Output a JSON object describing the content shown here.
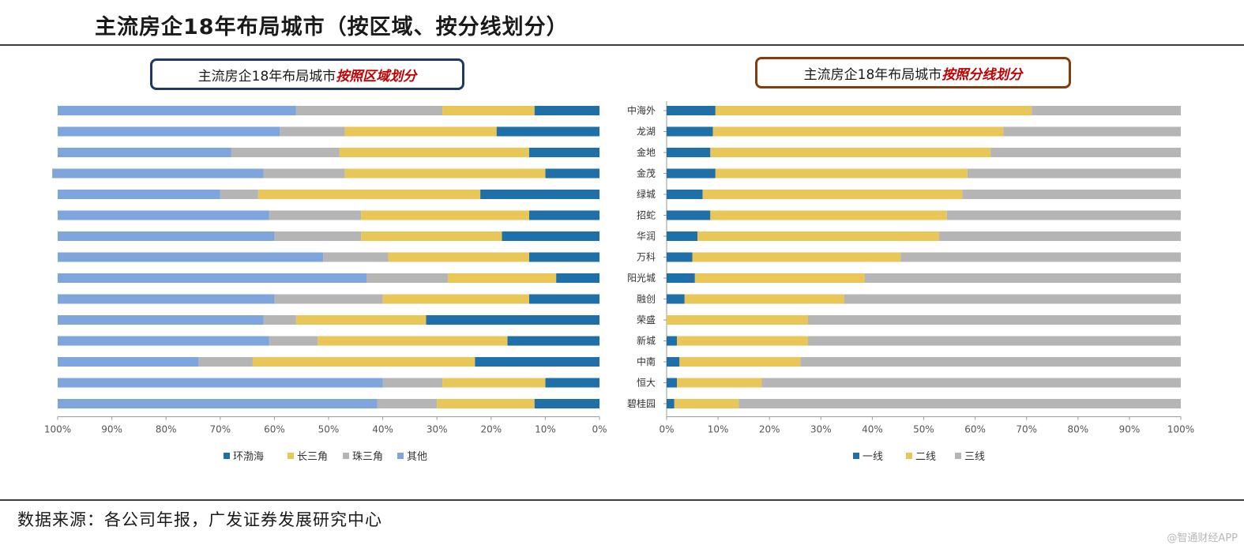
{
  "page": {
    "title": "主流房企18年布局城市（按区域、按分线划分）",
    "left_panel_title_prefix": "主流房企18年布局城市",
    "left_panel_title_highlight": "按照区域划分",
    "right_panel_title_prefix": "主流房企18年布局城市",
    "right_panel_title_highlight": "按照分线划分",
    "source": "数据来源：各公司年报，广发证券发展研究中心",
    "watermark": "@智通财经APP"
  },
  "colors": {
    "dark_blue": "#1f6fa8",
    "yellow": "#e8c657",
    "gray": "#b5b5b5",
    "light_blue": "#7ea6dc"
  },
  "chart_data": [
    {
      "type": "bar",
      "orientation": "horizontal",
      "stacked": true,
      "x_reversed": true,
      "title": "主流房企18年布局城市按照区域划分",
      "xlim": [
        0,
        100
      ],
      "x_ticks": [
        "100%",
        "90%",
        "80%",
        "70%",
        "60%",
        "50%",
        "40%",
        "30%",
        "20%",
        "10%",
        "0%"
      ],
      "legend_position": "bottom",
      "series": [
        {
          "name": "环渤海",
          "color": "#1f6fa8",
          "values": [
            12,
            19,
            13,
            10,
            22,
            13,
            18,
            13,
            8,
            13,
            32,
            17,
            23,
            10,
            12
          ]
        },
        {
          "name": "长三角",
          "color": "#e8c657",
          "values": [
            17,
            28,
            35,
            37,
            41,
            31,
            26,
            26,
            20,
            27,
            24,
            35,
            41,
            19,
            18
          ]
        },
        {
          "name": "珠三角",
          "color": "#b5b5b5",
          "values": [
            27,
            12,
            20,
            15,
            7,
            17,
            16,
            12,
            15,
            20,
            6,
            9,
            10,
            11,
            11
          ]
        },
        {
          "name": "其他",
          "color": "#7ea6dc",
          "values": [
            44,
            41,
            32,
            39,
            30,
            39,
            40,
            49,
            57,
            40,
            38,
            39,
            26,
            60,
            59
          ]
        }
      ]
    },
    {
      "type": "bar",
      "orientation": "horizontal",
      "stacked": true,
      "title": "主流房企18年布局城市按照分线划分",
      "categories": [
        "中海外",
        "龙湖",
        "金地",
        "金茂",
        "绿城",
        "招蛇",
        "华润",
        "万科",
        "阳光城",
        "融创",
        "荣盛",
        "新城",
        "中南",
        "恒大",
        "碧桂园"
      ],
      "xlim": [
        0,
        100
      ],
      "x_ticks": [
        "0%",
        "10%",
        "20%",
        "30%",
        "40%",
        "50%",
        "60%",
        "70%",
        "80%",
        "90%",
        "100%"
      ],
      "legend_position": "bottom",
      "series": [
        {
          "name": "一线",
          "color": "#1f6fa8",
          "values": [
            9.5,
            9,
            8.5,
            9.5,
            7,
            8.5,
            6,
            5,
            5.5,
            3.5,
            0,
            2,
            2.5,
            2,
            1.5
          ]
        },
        {
          "name": "二线",
          "color": "#e8c657",
          "values": [
            61.5,
            56.5,
            54.5,
            49,
            50.5,
            46,
            47,
            40.5,
            33,
            31,
            27.5,
            25.5,
            23.5,
            16.5,
            12.5
          ]
        },
        {
          "name": "三线",
          "color": "#b5b5b5",
          "values": [
            29,
            34.5,
            37,
            41.5,
            42.5,
            45.5,
            47,
            54.5,
            61.5,
            65.5,
            72.5,
            72.5,
            74,
            81.5,
            86
          ]
        }
      ]
    }
  ]
}
